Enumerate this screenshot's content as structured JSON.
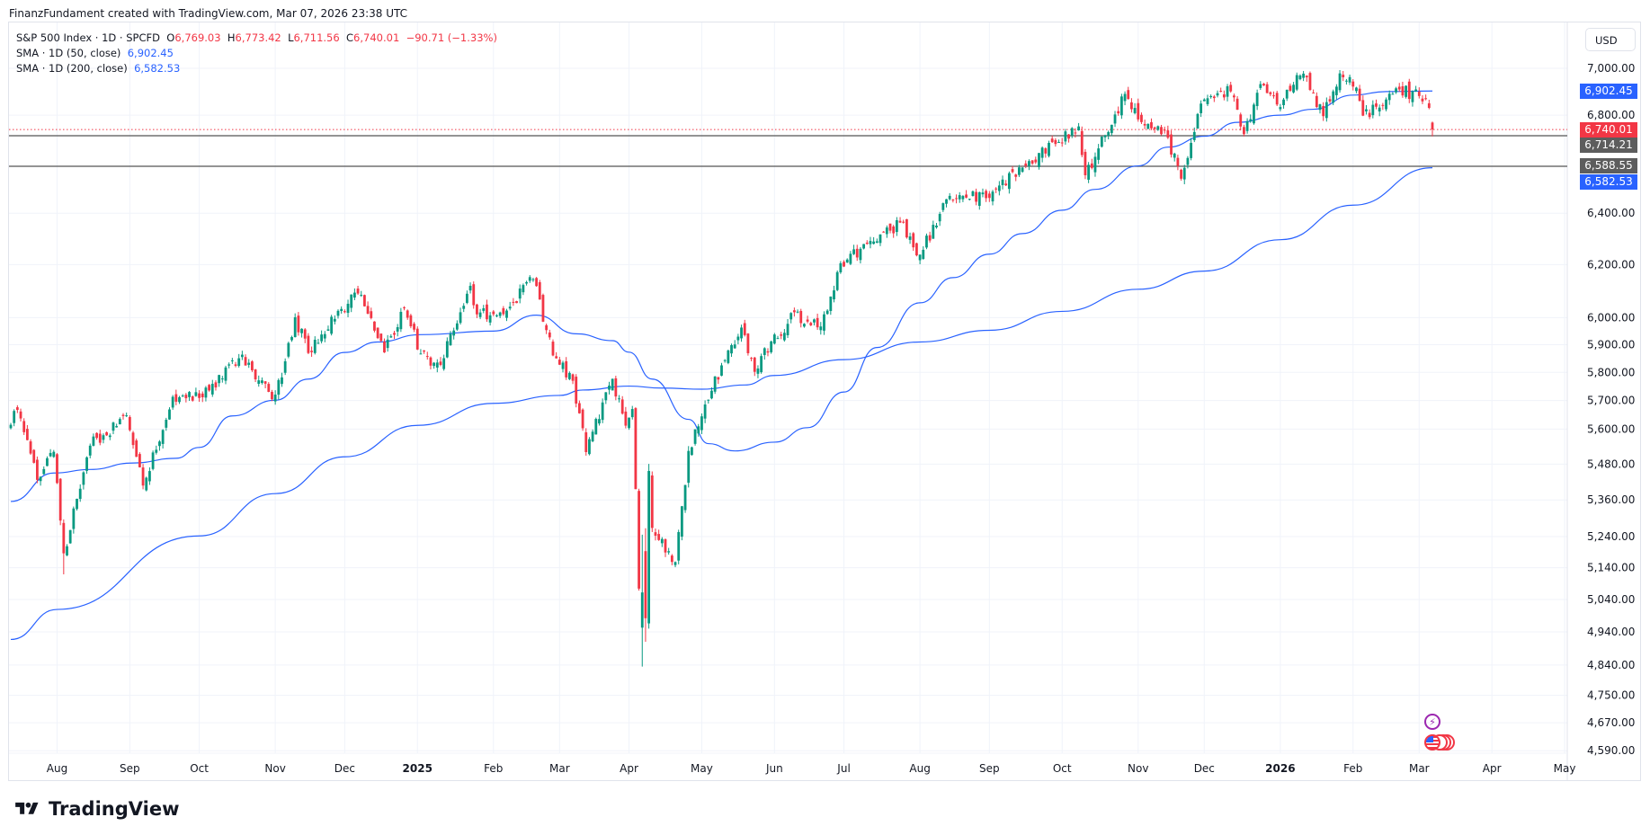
{
  "header": {
    "credit": "FinanzFundament created with TradingView.com, Mar 07, 2026 23:38 UTC"
  },
  "legend": {
    "symbol": "S&P 500 Index · 1D · SPCFD",
    "o_label": "O",
    "o": "6,769.03",
    "h_label": "H",
    "h": "6,773.42",
    "l_label": "L",
    "l": "6,711.56",
    "c_label": "C",
    "c": "6,740.01",
    "change": "−90.71 (−1.33%)",
    "sma50_label": "SMA · 1D (50, close)",
    "sma50": "6,902.45",
    "sma200_label": "SMA · 1D (200, close)",
    "sma200": "6,582.53"
  },
  "currency": "USD",
  "badges": {
    "sma50": "6,902.45",
    "last": "6,740.01",
    "line1": "6,714.21",
    "line2": "6,588.55",
    "sma200": "6,582.53"
  },
  "colors": {
    "up": "#089981",
    "down": "#f23645",
    "sma": "#2962ff",
    "hline": "#555555",
    "grid": "#f0f3fa"
  },
  "logo": {
    "text": "TradingView"
  },
  "chart_data": {
    "type": "candlestick",
    "title": "S&P 500 Index · 1D · SPCFD",
    "yscale": "log",
    "ylim": [
      4560,
      7050
    ],
    "y_ticks": [
      "7,000.00",
      "6,800.00",
      "6,400.00",
      "6,200.00",
      "6,000.00",
      "5,900.00",
      "5,800.00",
      "5,700.00",
      "5,600.00",
      "5,480.00",
      "5,360.00",
      "5,240.00",
      "5,140.00",
      "5,040.00",
      "4,940.00",
      "4,840.00",
      "4,750.00",
      "4,670.00",
      "4,590.00"
    ],
    "x_ticks": [
      {
        "label": "Aug",
        "date": "2024-08-01"
      },
      {
        "label": "Sep",
        "date": "2024-09-02"
      },
      {
        "label": "Oct",
        "date": "2024-10-01"
      },
      {
        "label": "Nov",
        "date": "2024-11-01"
      },
      {
        "label": "Dec",
        "date": "2024-12-02"
      },
      {
        "label": "2025",
        "date": "2025-01-01",
        "bold": true
      },
      {
        "label": "Feb",
        "date": "2025-02-03"
      },
      {
        "label": "Mar",
        "date": "2025-03-03"
      },
      {
        "label": "Apr",
        "date": "2025-04-01"
      },
      {
        "label": "May",
        "date": "2025-05-01"
      },
      {
        "label": "Jun",
        "date": "2025-06-02"
      },
      {
        "label": "Jul",
        "date": "2025-07-01"
      },
      {
        "label": "Aug",
        "date": "2025-08-01"
      },
      {
        "label": "Sep",
        "date": "2025-09-01"
      },
      {
        "label": "Oct",
        "date": "2025-10-01"
      },
      {
        "label": "Nov",
        "date": "2025-11-03"
      },
      {
        "label": "Dec",
        "date": "2025-12-01"
      },
      {
        "label": "2026",
        "date": "2026-01-01",
        "bold": true
      },
      {
        "label": "Feb",
        "date": "2026-02-02"
      },
      {
        "label": "Mar",
        "date": "2026-03-02"
      },
      {
        "label": "Apr",
        "date": "2026-04-01"
      },
      {
        "label": "May",
        "date": "2026-05-01"
      }
    ],
    "close_anchors": [
      [
        "2024-07-12",
        5615
      ],
      [
        "2024-07-16",
        5667
      ],
      [
        "2024-07-24",
        5427
      ],
      [
        "2024-07-31",
        5522
      ],
      [
        "2024-08-05",
        5186
      ],
      [
        "2024-08-15",
        5543
      ],
      [
        "2024-08-30",
        5648
      ],
      [
        "2024-09-06",
        5408
      ],
      [
        "2024-09-19",
        5713
      ],
      [
        "2024-10-01",
        5709
      ],
      [
        "2024-10-18",
        5864
      ],
      [
        "2024-10-31",
        5705
      ],
      [
        "2024-11-05",
        5782
      ],
      [
        "2024-11-11",
        6001
      ],
      [
        "2024-11-15",
        5870
      ],
      [
        "2024-11-29",
        6032
      ],
      [
        "2024-12-06",
        6090
      ],
      [
        "2024-12-18",
        5872
      ],
      [
        "2024-12-26",
        6037
      ],
      [
        "2025-01-02",
        5868
      ],
      [
        "2025-01-10",
        5827
      ],
      [
        "2025-01-23",
        6119
      ],
      [
        "2025-01-27",
        6012
      ],
      [
        "2025-02-07",
        6026
      ],
      [
        "2025-02-19",
        6144
      ],
      [
        "2025-02-27",
        5861
      ],
      [
        "2025-03-07",
        5770
      ],
      [
        "2025-03-13",
        5521
      ],
      [
        "2025-03-25",
        5777
      ],
      [
        "2025-03-31",
        5612
      ],
      [
        "2025-04-02",
        5670
      ],
      [
        "2025-04-03",
        5396
      ],
      [
        "2025-04-04",
        5074
      ],
      [
        "2025-04-07",
        5062
      ],
      [
        "2025-04-08",
        4982
      ],
      [
        "2025-04-09",
        5457
      ],
      [
        "2025-04-10",
        5268
      ],
      [
        "2025-04-21",
        5158
      ],
      [
        "2025-04-25",
        5525
      ],
      [
        "2025-05-02",
        5686
      ],
      [
        "2025-05-12",
        5844
      ],
      [
        "2025-05-19",
        5963
      ],
      [
        "2025-05-23",
        5802
      ],
      [
        "2025-05-30",
        5912
      ],
      [
        "2025-06-11",
        6022
      ],
      [
        "2025-06-13",
        5977
      ],
      [
        "2025-06-20",
        5967
      ],
      [
        "2025-06-30",
        6205
      ],
      [
        "2025-07-10",
        6280
      ],
      [
        "2025-07-24",
        6363
      ],
      [
        "2025-08-01",
        6238
      ],
      [
        "2025-08-14",
        6469
      ],
      [
        "2025-08-29",
        6460
      ],
      [
        "2025-09-12",
        6584
      ],
      [
        "2025-09-30",
        6688
      ],
      [
        "2025-10-08",
        6753
      ],
      [
        "2025-10-10",
        6552
      ],
      [
        "2025-10-28",
        6890
      ],
      [
        "2025-11-04",
        6771
      ],
      [
        "2025-11-13",
        6737
      ],
      [
        "2025-11-20",
        6538
      ],
      [
        "2025-11-28",
        6849
      ],
      [
        "2025-12-11",
        6901
      ],
      [
        "2025-12-17",
        6721
      ],
      [
        "2025-12-24",
        6932
      ],
      [
        "2025-12-31",
        6845
      ],
      [
        "2026-01-12",
        6977
      ],
      [
        "2026-01-20",
        6796
      ],
      [
        "2026-01-27",
        6978
      ],
      [
        "2026-02-03",
        6917
      ],
      [
        "2026-02-05",
        6798
      ],
      [
        "2026-02-12",
        6832
      ],
      [
        "2026-02-20",
        6909
      ],
      [
        "2026-03-02",
        6881
      ],
      [
        "2026-03-04",
        6869
      ],
      [
        "2026-03-05",
        6830.72
      ],
      [
        "2026-03-06",
        6740.01
      ]
    ],
    "special_candles": [
      {
        "date": "2024-08-05",
        "low": 5119
      },
      {
        "date": "2025-04-07",
        "open": 4953,
        "high": 5246,
        "low": 4835,
        "close": 5062
      },
      {
        "date": "2025-04-08",
        "open": 5193,
        "high": 5267,
        "low": 4910,
        "close": 4982
      },
      {
        "date": "2025-04-09",
        "open": 4966,
        "high": 5481,
        "low": 4950,
        "close": 5457
      },
      {
        "date": "2026-03-06",
        "open": 6769.03,
        "high": 6773.42,
        "low": 6711.56,
        "close": 6740.01
      }
    ],
    "series": [
      {
        "name": "SMA 50",
        "points": [
          [
            "2024-07-12",
            5355
          ],
          [
            "2024-07-31",
            5450
          ],
          [
            "2024-08-15",
            5462
          ],
          [
            "2024-09-03",
            5484
          ],
          [
            "2024-09-20",
            5500
          ],
          [
            "2024-10-01",
            5537
          ],
          [
            "2024-10-15",
            5646
          ],
          [
            "2024-11-01",
            5701
          ],
          [
            "2024-11-15",
            5776
          ],
          [
            "2024-12-02",
            5872
          ],
          [
            "2024-12-16",
            5910
          ],
          [
            "2025-01-02",
            5937
          ],
          [
            "2025-02-03",
            5950
          ],
          [
            "2025-02-20",
            6009
          ],
          [
            "2025-03-10",
            5940
          ],
          [
            "2025-03-25",
            5915
          ],
          [
            "2025-04-01",
            5873
          ],
          [
            "2025-04-10",
            5776
          ],
          [
            "2025-04-25",
            5634
          ],
          [
            "2025-05-05",
            5550
          ],
          [
            "2025-05-15",
            5525
          ],
          [
            "2025-06-02",
            5555
          ],
          [
            "2025-06-16",
            5605
          ],
          [
            "2025-07-01",
            5730
          ],
          [
            "2025-07-15",
            5890
          ],
          [
            "2025-08-01",
            6055
          ],
          [
            "2025-08-15",
            6150
          ],
          [
            "2025-09-01",
            6240
          ],
          [
            "2025-09-15",
            6320
          ],
          [
            "2025-10-01",
            6412
          ],
          [
            "2025-10-15",
            6495
          ],
          [
            "2025-11-03",
            6590
          ],
          [
            "2025-11-14",
            6667
          ],
          [
            "2025-12-01",
            6712
          ],
          [
            "2025-12-15",
            6770
          ],
          [
            "2026-01-01",
            6800
          ],
          [
            "2026-01-15",
            6825
          ],
          [
            "2026-02-02",
            6885
          ],
          [
            "2026-02-16",
            6900
          ],
          [
            "2026-03-06",
            6902.45
          ]
        ]
      },
      {
        "name": "SMA 200",
        "points": [
          [
            "2024-07-12",
            4917
          ],
          [
            "2024-08-01",
            5009
          ],
          [
            "2024-10-01",
            5242
          ],
          [
            "2024-11-01",
            5381
          ],
          [
            "2024-12-02",
            5505
          ],
          [
            "2025-01-01",
            5613
          ],
          [
            "2025-02-03",
            5690
          ],
          [
            "2025-03-03",
            5718
          ],
          [
            "2025-03-12",
            5737
          ],
          [
            "2025-04-01",
            5751
          ],
          [
            "2025-04-15",
            5744
          ],
          [
            "2025-05-01",
            5740
          ],
          [
            "2025-05-20",
            5755
          ],
          [
            "2025-06-02",
            5789
          ],
          [
            "2025-07-01",
            5846
          ],
          [
            "2025-08-01",
            5910
          ],
          [
            "2025-09-01",
            5953
          ],
          [
            "2025-10-01",
            6023
          ],
          [
            "2025-11-03",
            6106
          ],
          [
            "2025-12-01",
            6175
          ],
          [
            "2026-01-01",
            6296
          ],
          [
            "2026-02-02",
            6432
          ],
          [
            "2026-03-06",
            6582.53
          ]
        ]
      }
    ],
    "horizontal_lines": [
      6714.21,
      6588.55
    ],
    "last_price": 6740.01
  }
}
